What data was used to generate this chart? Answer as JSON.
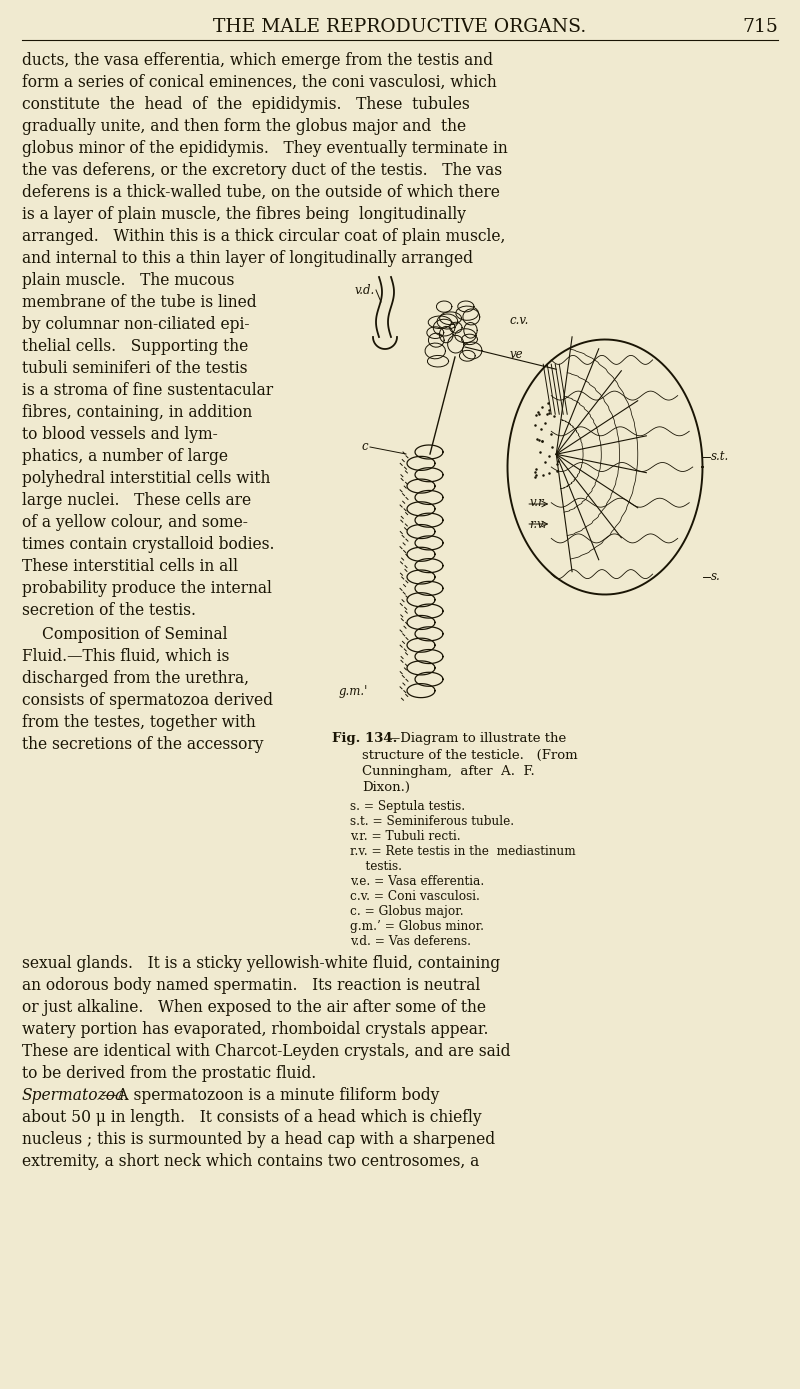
{
  "bg": "#f0ead0",
  "tc": "#1a1505",
  "header": "THE MALE REPRODUCTIVE ORGANS.",
  "pagenum": "715",
  "hfs": 13.5,
  "bfs": 11.2,
  "sfs": 9.5,
  "lfs": 8.5,
  "lines_full": [
    "ducts, the vasa efferentia, which emerge from the testis and",
    "form a series of conical eminences, the coni vasculosi, which",
    "constitute  the  head  of  the  epididymis.   These  tubules",
    "gradually unite, and then form the globus major and  the",
    "globus minor of the epididymis.   They eventually terminate in",
    "the vas deferens, or the excretory duct of the testis.   The vas",
    "deferens is a thick-walled tube, on the outside of which there",
    "is a layer of plain muscle, the fibres being  longitudinally",
    "arranged.   Within this is a thick circular coat of plain muscle,",
    "and internal to this a thin layer of longitudinally arranged"
  ],
  "lines_left": [
    "plain muscle.   The mucous",
    "membrane of the tube is lined",
    "by columnar non-ciliated epi-",
    "thelial cells.   Supporting the",
    "tubuli seminiferi of the testis",
    "is a stroma of fine sustentacular",
    "fibres, containing, in addition",
    "to blood vessels and lym-",
    "phatics, a number of large",
    "polyhedral interstitial cells with",
    "large nuclei.   These cells are",
    "of a yellow colour, and some-",
    "times contain crystalloid bodies.",
    "These interstitial cells in all",
    "probability produce the internal",
    "secretion of the testis."
  ],
  "lines_left2_head": "   Composition of Seminal",
  "lines_left2_rest": [
    "Fluid.—This fluid, which is",
    "discharged from the urethra,",
    "consists of spermatozoa derived",
    "from the testes, together with",
    "the secretions of the accessory"
  ],
  "lines_full2": [
    "sexual glands.   It is a sticky yellowish-white fluid, containing",
    "an odorous body named spermatin.   Its reaction is neutral",
    "or just alkaline.   When exposed to the air after some of the",
    "watery portion has evaporated, rhomboidal crystals appear.",
    "These are identical with Charcot-Leyden crystals, and are said",
    "to be derived from the prostatic fluid."
  ],
  "sperm_italic": "Spermatozoa.",
  "sperm_rest": "—A spermatozoon is a minute filiform body",
  "lines_full3": [
    "about 50 μ in length.   It consists of a head which is chiefly",
    "nucleus ; this is surmounted by a head cap with a sharpened",
    "extremity, a short neck which contains two centrosomes, a"
  ],
  "cap_bold": "Fig. 134.",
  "cap_rest_line1": "—Diagram to illustrate the",
  "cap_lines": [
    "structure of the testicle.   (From",
    "Cunningham,  after  A.  F.",
    "Dixon.)"
  ],
  "fig_labels": [
    "s. = Septula testis.",
    "s.t. = Seminiferous tubule.",
    "v.r. = Tubuli recti.",
    "r.v. = Rete testis in the  mediastinum",
    "    testis.",
    "v.e. = Vasa efferentia.",
    "c.v. = Coni vasculosi.",
    "c. = Globus major.",
    "g.m.’ = Globus minor.",
    "v.d. = Vas deferens."
  ]
}
